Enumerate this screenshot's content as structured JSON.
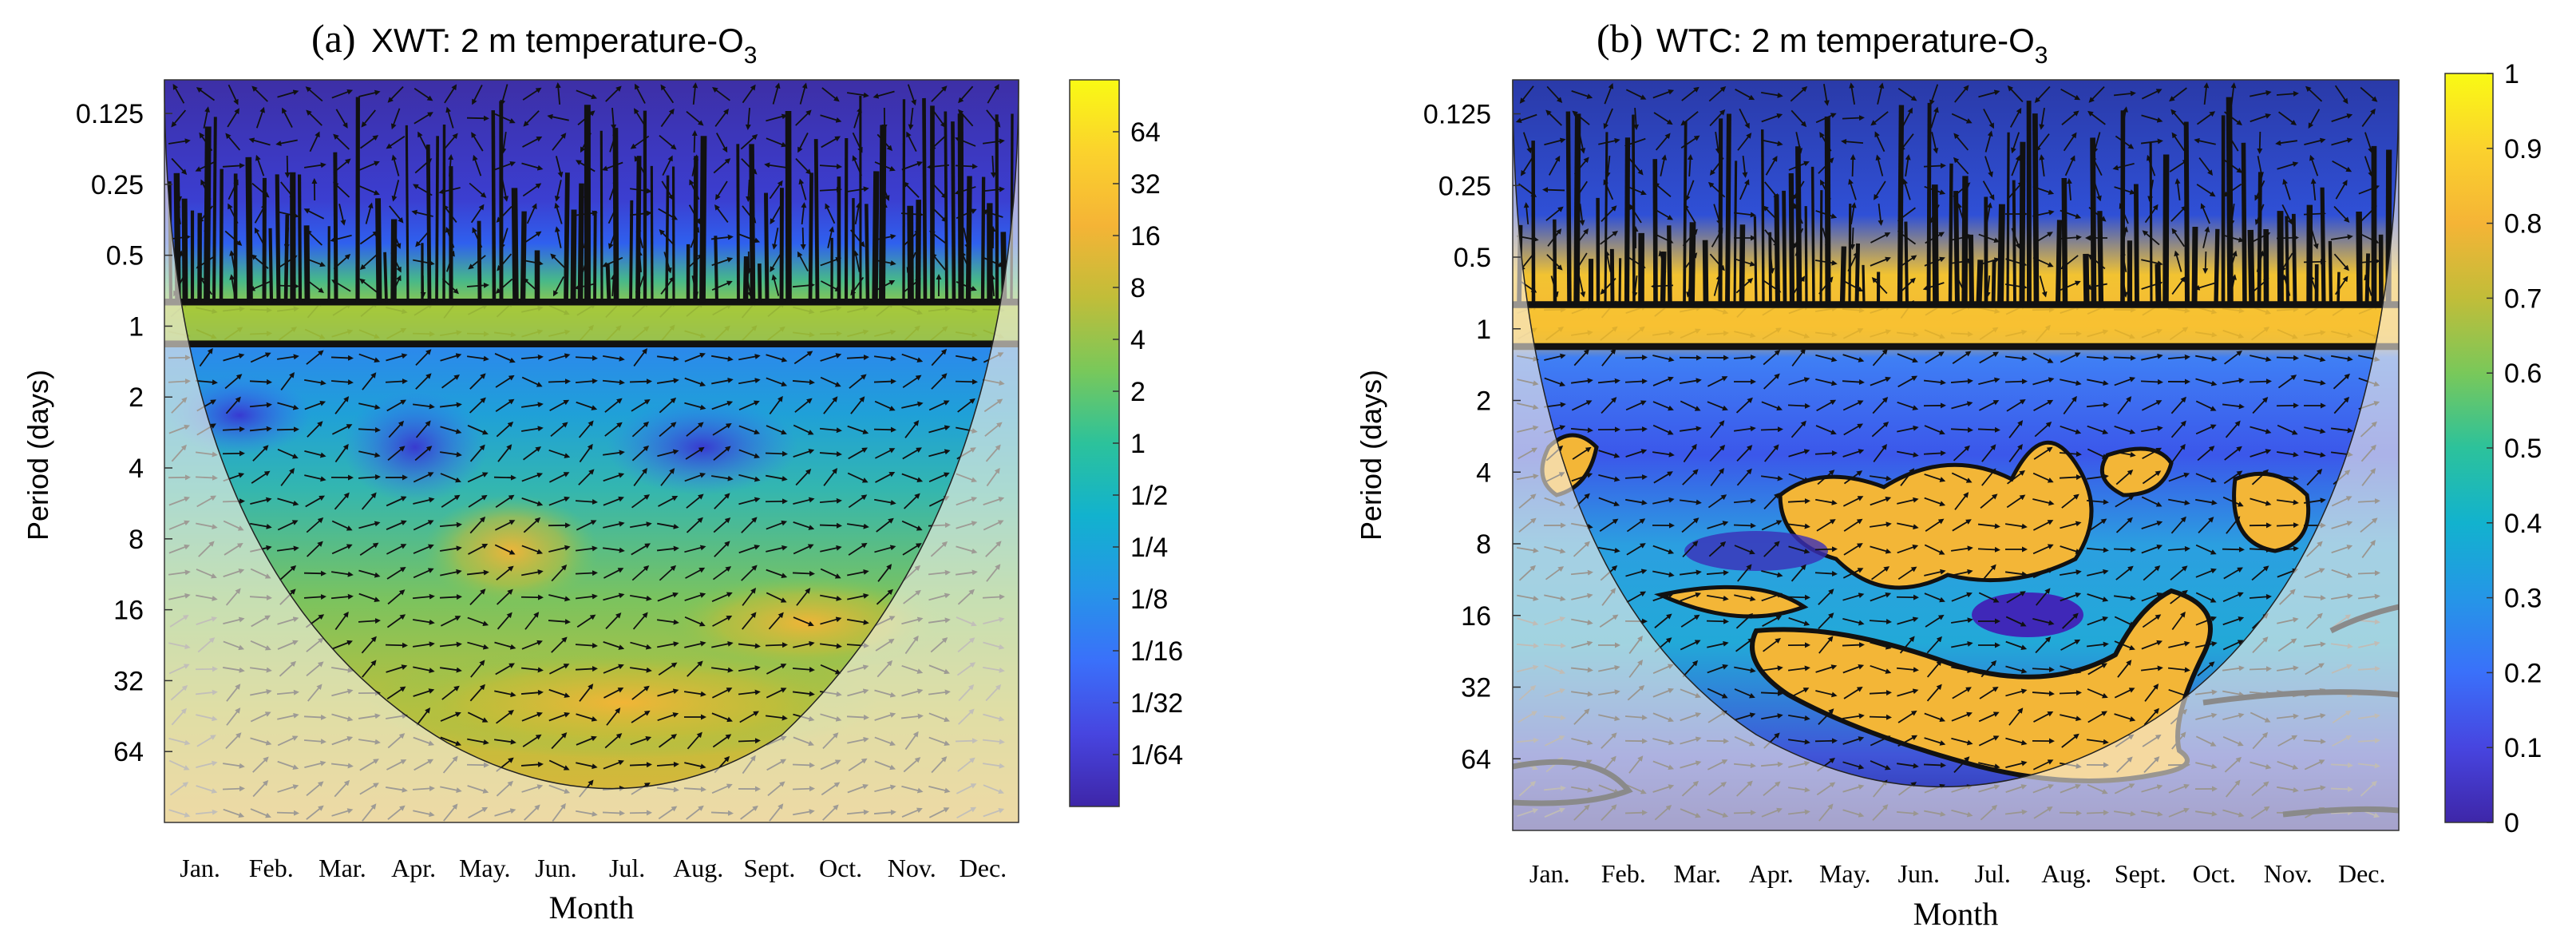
{
  "chart_data": [
    {
      "id": "a",
      "type": "heatmap",
      "panel_label": "(a)",
      "title_prefix": "XWT: 2 m temperature-O",
      "title_subscript": "3",
      "xlabel": "Month",
      "ylabel": "Period (days)",
      "x_tick_labels": [
        "Jan.",
        "Feb.",
        "Mar.",
        "Apr.",
        "May.",
        "Jun.",
        "Jul.",
        "Aug.",
        "Sept.",
        "Oct.",
        "Nov.",
        "Dec."
      ],
      "y_tick_labels": [
        "0.125",
        "0.25",
        "0.5",
        "1",
        "2",
        "4",
        "8",
        "16",
        "32",
        "64"
      ],
      "y_tick_values": [
        0.125,
        0.25,
        0.5,
        1,
        2,
        4,
        8,
        16,
        32,
        64
      ],
      "ylim": [
        0.09,
        128
      ],
      "y_scale": "log2",
      "colorbar_tick_labels": [
        "64",
        "32",
        "16",
        "8",
        "4",
        "2",
        "1",
        "1/2",
        "1/4",
        "1/8",
        "1/16",
        "1/32",
        "1/64"
      ],
      "colorbar_range_log2": [
        -7,
        7
      ],
      "colormap": [
        "#3e26a8",
        "#4745e0",
        "#3a70fa",
        "#2596e7",
        "#12b2ce",
        "#2cc29b",
        "#79c85a",
        "#c1bd39",
        "#f5b436",
        "#fbd22d",
        "#f9fa14"
      ],
      "features": {
        "daily_band_period": 1,
        "cone_of_influence": true
      }
    },
    {
      "id": "b",
      "type": "heatmap",
      "panel_label": "(b)",
      "title_prefix": "WTC: 2 m temperature-O",
      "title_subscript": "3",
      "xlabel": "Month",
      "ylabel": "Period (days)",
      "x_tick_labels": [
        "Jan.",
        "Feb.",
        "Mar.",
        "Apr.",
        "May.",
        "Jun.",
        "Jul.",
        "Aug.",
        "Sept.",
        "Oct.",
        "Nov.",
        "Dec."
      ],
      "y_tick_labels": [
        "0.125",
        "0.25",
        "0.5",
        "1",
        "2",
        "4",
        "8",
        "16",
        "32",
        "64"
      ],
      "y_tick_values": [
        0.125,
        0.25,
        0.5,
        1,
        2,
        4,
        8,
        16,
        32,
        64
      ],
      "ylim": [
        0.09,
        128
      ],
      "y_scale": "log2",
      "colorbar_tick_labels": [
        "1",
        "0.9",
        "0.8",
        "0.7",
        "0.6",
        "0.5",
        "0.4",
        "0.3",
        "0.2",
        "0.1",
        "0"
      ],
      "colorbar_tick_values": [
        1,
        0.9,
        0.8,
        0.7,
        0.6,
        0.5,
        0.4,
        0.3,
        0.2,
        0.1,
        0
      ],
      "colorbar_range": [
        0,
        1
      ],
      "colormap": [
        "#3e26a8",
        "#4745e0",
        "#3a70fa",
        "#2596e7",
        "#12b2ce",
        "#2cc29b",
        "#79c85a",
        "#c1bd39",
        "#f5b436",
        "#fbd22d",
        "#f9fa14"
      ],
      "features": {
        "daily_band_period": 1,
        "cone_of_influence": true
      }
    }
  ]
}
